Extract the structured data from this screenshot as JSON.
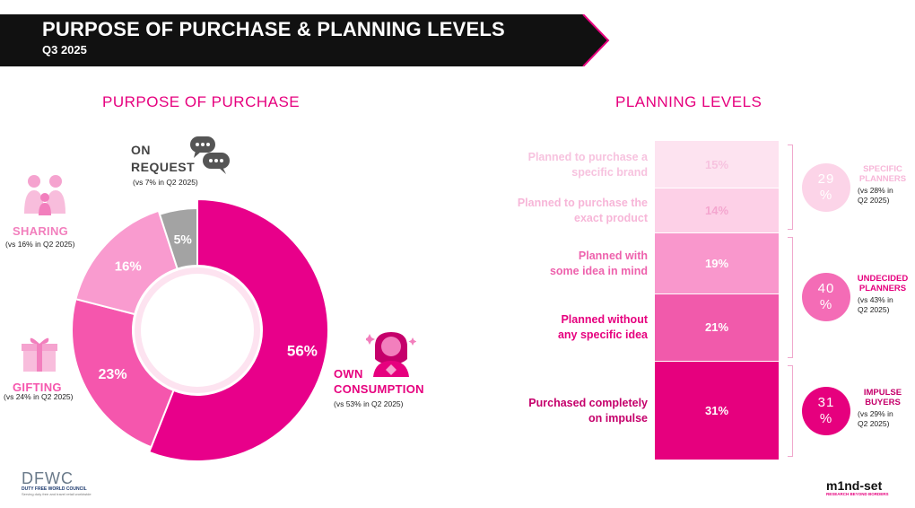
{
  "header": {
    "title": "PURPOSE OF PURCHASE & PLANNING LEVELS",
    "subtitle": "Q3 2025"
  },
  "purpose": {
    "section_title": "PURPOSE OF PURCHASE",
    "categories": [
      {
        "key": "own",
        "name_line1": "OWN",
        "name_line2": "CONSUMPTION",
        "value": 56,
        "display": "56%",
        "comparison": "(vs 53% in Q2 2025)",
        "color": "#e8008a",
        "icon": "woman-icon"
      },
      {
        "key": "gifting",
        "name_line1": "GIFTING",
        "value": 23,
        "display": "23%",
        "comparison": "(vs 24% in Q2 2025)",
        "color": "#f556ad",
        "icon": "gift-icon"
      },
      {
        "key": "sharing",
        "name_line1": "SHARING",
        "value": 16,
        "display": "16%",
        "comparison": "(vs 16% in Q2 2025)",
        "color": "#f99bcf",
        "icon": "family-icon"
      },
      {
        "key": "request",
        "name_line1": "ON",
        "name_line2": "REQUEST",
        "value": 5,
        "display": "5%",
        "comparison": "(vs 7% in Q2 2025)",
        "color": "#a3a3a3",
        "icon": "chat-bubbles-icon"
      }
    ]
  },
  "planning": {
    "section_title": "PLANNING LEVELS",
    "segments": [
      {
        "line1": "Planned to purchase a",
        "line2": "specific brand",
        "value": 15,
        "display": "15%",
        "color": "#fde3f0",
        "label_color": "#f7c3df",
        "value_color": "#f7c3df"
      },
      {
        "line1": "Planned to purchase the",
        "line2": "exact product",
        "value": 14,
        "display": "14%",
        "color": "#fdd0e7",
        "label_color": "#f7b6d8",
        "value_color": "#f4a6cf"
      },
      {
        "line1": "Planned with",
        "line2": "some idea in mind",
        "value": 19,
        "display": "19%",
        "color": "#f997cc",
        "label_color": "#ee62ad",
        "value_color": "#ffffff"
      },
      {
        "line1": "Planned without",
        "line2": "any specific idea",
        "value": 21,
        "display": "21%",
        "color": "#f15aab",
        "label_color": "#e6007e",
        "value_color": "#ffffff"
      },
      {
        "line1": "Purchased completely",
        "line2": "on impulse",
        "value": 31,
        "display": "31%",
        "color": "#e6007e",
        "label_color": "#c5006b",
        "value_color": "#ffffff"
      }
    ],
    "groups": [
      {
        "value": "29",
        "unit": "%",
        "title_line1": "SPECIFIC",
        "title_line2": "PLANNERS",
        "note_line1": "(vs 28% in",
        "note_line2": "Q2 2025)",
        "color": "#fcd4e8",
        "title_color": "#f7b6d8"
      },
      {
        "value": "40",
        "unit": "%",
        "title_line1": "UNDECIDED",
        "title_line2": "PLANNERS",
        "note_line1": "(vs 43% in",
        "note_line2": "Q2 2025)",
        "color": "#f46cb6",
        "title_color": "#e6007e"
      },
      {
        "value": "31",
        "unit": "%",
        "title_line1": "IMPULSE",
        "title_line2": "BUYERS",
        "note_line1": "(vs 29% in",
        "note_line2": "Q2 2025)",
        "color": "#e6007e",
        "title_color": "#c5006b"
      }
    ]
  },
  "logos": {
    "left_mark": "DFWC",
    "left_caption": "DUTY FREE WORLD COUNCIL",
    "left_tagline": "Serving duty free and travel retail worldwide",
    "right_mark": "m1nd-set",
    "right_caption": "RESEARCH BEYOND BORDERS"
  },
  "chart_data": [
    {
      "type": "pie",
      "title": "PURPOSE OF PURCHASE",
      "categories": [
        "OWN CONSUMPTION",
        "GIFTING",
        "SHARING",
        "ON REQUEST"
      ],
      "values": [
        56,
        23,
        16,
        5
      ],
      "comparison_q2_2025": [
        53,
        24,
        16,
        7
      ]
    },
    {
      "type": "bar",
      "title": "PLANNING LEVELS",
      "categories": [
        "Planned to purchase a specific brand",
        "Planned to purchase the exact product",
        "Planned with some idea in mind",
        "Planned without any specific idea",
        "Purchased completely on impulse"
      ],
      "values": [
        15,
        14,
        19,
        21,
        31
      ],
      "groups": [
        {
          "name": "SPECIFIC PLANNERS",
          "value": 29,
          "q2_2025": 28
        },
        {
          "name": "UNDECIDED PLANNERS",
          "value": 40,
          "q2_2025": 43
        },
        {
          "name": "IMPULSE BUYERS",
          "value": 31,
          "q2_2025": 29
        }
      ]
    }
  ]
}
